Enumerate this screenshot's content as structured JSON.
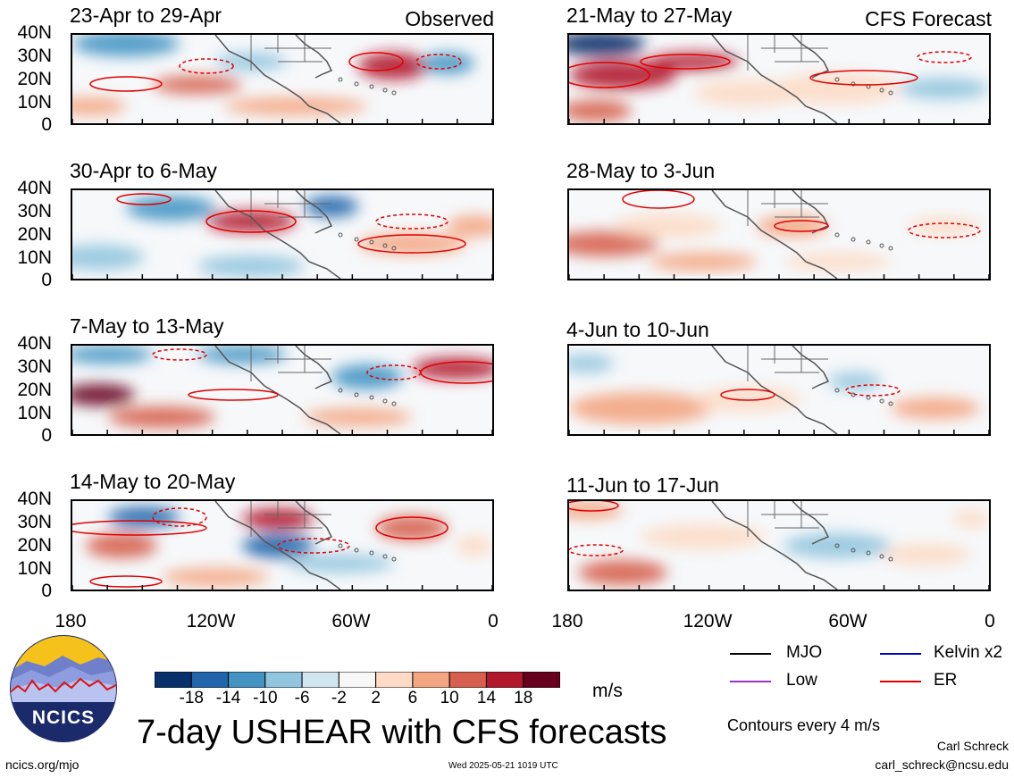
{
  "panels": [
    {
      "title": "23-Apr to 29-Apr",
      "tag": "Observed"
    },
    {
      "title": "21-May to 27-May",
      "tag": "CFS Forecast"
    },
    {
      "title": "30-Apr to 6-May",
      "tag": ""
    },
    {
      "title": "28-May to 3-Jun",
      "tag": ""
    },
    {
      "title": "7-May to 13-May",
      "tag": ""
    },
    {
      "title": "4-Jun to 10-Jun",
      "tag": ""
    },
    {
      "title": "14-May to 20-May",
      "tag": ""
    },
    {
      "title": "11-Jun to 17-Jun",
      "tag": ""
    }
  ],
  "lat_labels": [
    "40N",
    "30N",
    "20N",
    "10N",
    "0"
  ],
  "lon_labels": [
    "180",
    "120W",
    "60W",
    "0"
  ],
  "colorbar": {
    "labels": [
      "-18",
      "-14",
      "-10",
      "-6",
      "-2",
      "2",
      "6",
      "10",
      "14",
      "18"
    ],
    "colors": [
      "#08306b",
      "#2166ac",
      "#4393c3",
      "#92c5de",
      "#d1e5f0",
      "#f7f7f7",
      "#fddbc7",
      "#f4a582",
      "#d6604d",
      "#b2182b",
      "#67001f"
    ],
    "units": "m/s"
  },
  "legend": {
    "items": [
      {
        "label": "MJO",
        "color": "#000000"
      },
      {
        "label": "Kelvin x2",
        "color": "#0000cc"
      },
      {
        "label": "Low",
        "color": "#9933cc"
      },
      {
        "label": "ER",
        "color": "#e00000"
      }
    ],
    "contour_note": "Contours every 4 m/s"
  },
  "main_title": "7-day USHEAR with CFS forecasts",
  "logo_text": "NCICS",
  "footer": {
    "url": "ncics.org/mjo",
    "timestamp": "Wed 2025-05-21 1019 UTC",
    "author": "Carl Schreck",
    "email": "carl_schreck@ncsu.edu"
  }
}
